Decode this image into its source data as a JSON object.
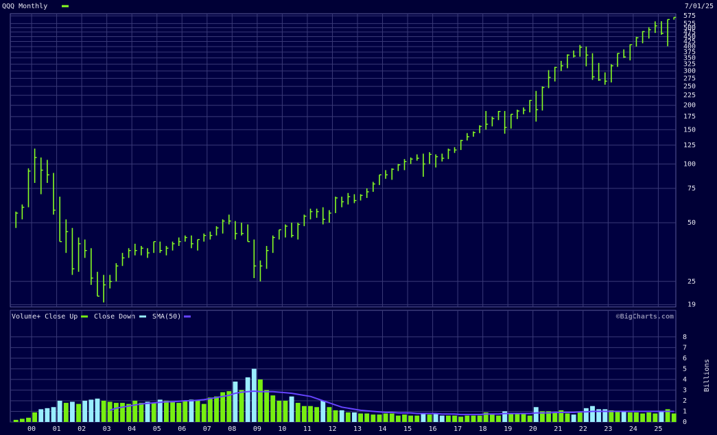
{
  "chart_data": [
    {
      "type": "ohlc",
      "title": "QQQ Monthly",
      "date_label": "7/01/25",
      "color": "#88ff22",
      "log_scale": true,
      "grid": true,
      "xlim": [
        1999.15,
        2025.7
      ],
      "ylim": [
        18.5,
        590
      ],
      "yticks": [
        19,
        25,
        50,
        75,
        100,
        125,
        150,
        175,
        200,
        225,
        250,
        275,
        300,
        325,
        350,
        375,
        400,
        425,
        450,
        475,
        500,
        525,
        575
      ],
      "x": [
        1999.25,
        1999.5,
        1999.75,
        2000,
        2000.25,
        2000.5,
        2000.75,
        2001,
        2001.25,
        2001.5,
        2001.75,
        2002,
        2002.25,
        2002.5,
        2002.75,
        2003,
        2003.25,
        2003.5,
        2003.75,
        2004,
        2004.25,
        2004.5,
        2004.75,
        2005,
        2005.25,
        2005.5,
        2005.75,
        2006,
        2006.25,
        2006.5,
        2006.75,
        2007,
        2007.25,
        2007.5,
        2007.75,
        2008,
        2008.25,
        2008.5,
        2008.75,
        2009,
        2009.25,
        2009.5,
        2009.75,
        2010,
        2010.25,
        2010.5,
        2010.75,
        2011,
        2011.25,
        2011.5,
        2011.75,
        2012,
        2012.25,
        2012.5,
        2012.75,
        2013,
        2013.25,
        2013.5,
        2013.75,
        2014,
        2014.25,
        2014.5,
        2014.75,
        2015,
        2015.25,
        2015.5,
        2015.75,
        2016,
        2016.25,
        2016.5,
        2016.75,
        2017,
        2017.25,
        2017.5,
        2017.75,
        2018,
        2018.25,
        2018.5,
        2018.75,
        2019,
        2019.25,
        2019.5,
        2019.75,
        2020,
        2020.25,
        2020.5,
        2020.75,
        2021,
        2021.25,
        2021.5,
        2021.75,
        2022,
        2022.25,
        2022.5,
        2022.75,
        2023,
        2023.25,
        2023.5,
        2023.75,
        2024,
        2024.25,
        2024.5,
        2024.75,
        2025,
        2025.25,
        2025.5
      ],
      "high": [
        57,
        62,
        95,
        120,
        108,
        105,
        90,
        68,
        52,
        47,
        42,
        41,
        37,
        28,
        27,
        27,
        31,
        35,
        37,
        39,
        38,
        37,
        40,
        40,
        38,
        40,
        42,
        43,
        43,
        41,
        44,
        45,
        48,
        52,
        55,
        51,
        50,
        49,
        41,
        32,
        38,
        43,
        46,
        49,
        50,
        50,
        55,
        59,
        59,
        60,
        58,
        68,
        68,
        71,
        70,
        70,
        75,
        81,
        88,
        93,
        95,
        100,
        106,
        108,
        112,
        113,
        115,
        112,
        113,
        120,
        122,
        133,
        144,
        147,
        158,
        187,
        175,
        187,
        187,
        180,
        190,
        195,
        213,
        237,
        250,
        303,
        315,
        338,
        365,
        382,
        408,
        400,
        370,
        330,
        295,
        325,
        370,
        387,
        411,
        449,
        480,
        503,
        539,
        540,
        552,
        566
      ],
      "low": [
        47,
        52,
        60,
        80,
        70,
        80,
        55,
        40,
        35,
        27,
        28,
        33,
        24,
        21,
        19.5,
        23,
        25,
        30,
        33,
        34,
        34,
        33,
        35,
        35,
        34,
        36,
        38,
        40,
        37,
        36,
        40,
        41,
        43,
        44,
        49,
        41,
        43,
        40,
        26,
        25,
        29,
        35,
        41,
        42,
        42,
        41,
        48,
        52,
        53,
        49,
        50,
        56,
        60,
        62,
        63,
        65,
        67,
        72,
        78,
        84,
        83,
        92,
        93,
        100,
        104,
        86,
        100,
        96,
        103,
        106,
        114,
        118,
        132,
        138,
        144,
        150,
        156,
        168,
        143,
        152,
        170,
        180,
        184,
        165,
        188,
        245,
        265,
        300,
        310,
        352,
        355,
        317,
        270,
        267,
        255,
        262,
        315,
        350,
        340,
        400,
        416,
        440,
        470,
        460,
        402,
        550
      ],
      "close": [
        56,
        60,
        92,
        108,
        93,
        88,
        58,
        40,
        45,
        29,
        39,
        36,
        26,
        21,
        24,
        25,
        30,
        33,
        36,
        36,
        37,
        35,
        40,
        36,
        37,
        39,
        40,
        42,
        39,
        41,
        43,
        43,
        47,
        51,
        51,
        44,
        44,
        40,
        30,
        30,
        36,
        42,
        46,
        48,
        43,
        49,
        54,
        57,
        57,
        52,
        56,
        67,
        64,
        68,
        65,
        69,
        72,
        79,
        88,
        88,
        94,
        99,
        103,
        106,
        107,
        100,
        112,
        109,
        107,
        118,
        118,
        132,
        138,
        145,
        156,
        160,
        171,
        186,
        154,
        180,
        187,
        189,
        212,
        190,
        247,
        278,
        313,
        319,
        362,
        358,
        397,
        362,
        280,
        270,
        266,
        319,
        369,
        354,
        409,
        444,
        478,
        488,
        511,
        468,
        551,
        565
      ],
      "xticks": [
        {
          "value": 2000,
          "label": "00"
        },
        {
          "value": 2001,
          "label": "01"
        },
        {
          "value": 2002,
          "label": "02"
        },
        {
          "value": 2003,
          "label": "03"
        },
        {
          "value": 2004,
          "label": "04"
        },
        {
          "value": 2005,
          "label": "05"
        },
        {
          "value": 2006,
          "label": "06"
        },
        {
          "value": 2007,
          "label": "07"
        },
        {
          "value": 2008,
          "label": "08"
        },
        {
          "value": 2009,
          "label": "09"
        },
        {
          "value": 2010,
          "label": "10"
        },
        {
          "value": 2011,
          "label": "11"
        },
        {
          "value": 2012,
          "label": "12"
        },
        {
          "value": 2013,
          "label": "13"
        },
        {
          "value": 2014,
          "label": "14"
        },
        {
          "value": 2015,
          "label": "15"
        },
        {
          "value": 2016,
          "label": "16"
        },
        {
          "value": 2017,
          "label": "17"
        },
        {
          "value": 2018,
          "label": "18"
        },
        {
          "value": 2019,
          "label": "19"
        },
        {
          "value": 2020,
          "label": "20"
        },
        {
          "value": 2021,
          "label": "21"
        },
        {
          "value": 2022,
          "label": "22"
        },
        {
          "value": 2023,
          "label": "23"
        },
        {
          "value": 2024,
          "label": "24"
        },
        {
          "value": 2025,
          "label": "25"
        }
      ]
    },
    {
      "type": "volume",
      "up_label": "Volume+ Close Up",
      "up_color": "#77ee11",
      "down_label": "Close Down",
      "down_color": "#99eeff",
      "y_label": "Billions",
      "credit": "©BigCharts.com",
      "grid": true,
      "ylim": [
        0,
        10.5
      ],
      "yticks": [
        0,
        1,
        2,
        3,
        4,
        5,
        6,
        7,
        8
      ],
      "values": [
        0.2,
        0.3,
        0.4,
        0.9,
        1.2,
        1.3,
        1.4,
        2.0,
        1.8,
        1.9,
        1.7,
        2.0,
        2.1,
        2.2,
        2.0,
        1.9,
        1.8,
        1.8,
        1.7,
        2.0,
        1.8,
        1.9,
        1.8,
        2.1,
        2.0,
        1.9,
        1.8,
        2.0,
        2.1,
        2.0,
        1.7,
        2.3,
        2.4,
        2.8,
        2.9,
        3.8,
        3.0,
        4.2,
        5.0,
        4.0,
        3.0,
        2.5,
        2.0,
        2.0,
        2.4,
        1.8,
        1.5,
        1.5,
        1.4,
        2.0,
        1.4,
        1.1,
        1.1,
        0.9,
        0.9,
        0.8,
        0.8,
        0.7,
        0.7,
        0.8,
        0.8,
        0.6,
        0.7,
        0.6,
        0.6,
        0.8,
        0.7,
        0.8,
        0.6,
        0.6,
        0.6,
        0.5,
        0.6,
        0.6,
        0.6,
        0.9,
        0.7,
        0.6,
        1.0,
        0.8,
        0.8,
        0.8,
        0.6,
        1.4,
        1.0,
        1.0,
        0.9,
        1.1,
        0.8,
        0.7,
        0.9,
        1.3,
        1.5,
        1.2,
        1.2,
        1.1,
        1.0,
        1.0,
        0.9,
        0.9,
        0.8,
        0.9,
        0.8,
        1.0,
        1.2,
        0.8
      ],
      "sma": {
        "name": "SMA(50)",
        "color": "#6644ff",
        "values": [
          null,
          null,
          null,
          null,
          null,
          null,
          null,
          null,
          null,
          null,
          null,
          null,
          null,
          null,
          null,
          1.1,
          1.3,
          1.4,
          1.5,
          1.6,
          1.7,
          1.75,
          1.8,
          1.85,
          1.9,
          1.9,
          1.95,
          2.0,
          2.0,
          2.05,
          2.1,
          2.2,
          2.3,
          2.4,
          2.5,
          2.7,
          2.8,
          2.85,
          2.9,
          2.85,
          2.85,
          2.85,
          2.8,
          2.75,
          2.7,
          2.6,
          2.5,
          2.4,
          2.2,
          2.0,
          1.8,
          1.6,
          1.4,
          1.3,
          1.2,
          1.1,
          1.05,
          1.0,
          0.95,
          0.9,
          0.9,
          0.85,
          0.85,
          0.85,
          0.8,
          0.8,
          0.8,
          0.8,
          0.75,
          0.75,
          0.75,
          0.7,
          0.7,
          0.7,
          0.7,
          0.75,
          0.75,
          0.75,
          0.8,
          0.8,
          0.8,
          0.8,
          0.8,
          0.85,
          0.85,
          0.85,
          0.9,
          0.9,
          0.9,
          0.9,
          0.95,
          0.95,
          1.0,
          1.0,
          1.0,
          1.0,
          1.0,
          1.0,
          1.0,
          1.0,
          1.0,
          1.0,
          1.0,
          1.0,
          1.0,
          1.0
        ]
      }
    }
  ]
}
